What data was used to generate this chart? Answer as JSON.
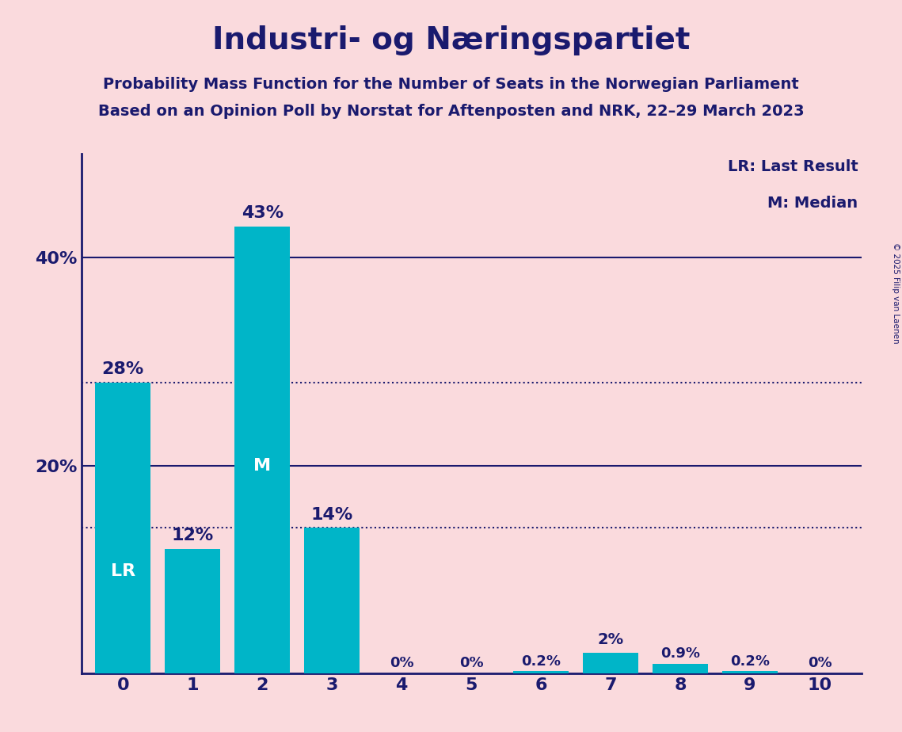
{
  "title": "Industri- og Næringspartiet",
  "subtitle1": "Probability Mass Function for the Number of Seats in the Norwegian Parliament",
  "subtitle2": "Based on an Opinion Poll by Norstat for Aftenposten and NRK, 22–29 March 2023",
  "copyright": "© 2025 Filip van Laenen",
  "categories": [
    0,
    1,
    2,
    3,
    4,
    5,
    6,
    7,
    8,
    9,
    10
  ],
  "values": [
    28,
    12,
    43,
    14,
    0,
    0,
    0.2,
    2,
    0.9,
    0.2,
    0
  ],
  "bar_color": "#00B5C8",
  "background_color": "#FADADD",
  "title_color": "#1A1A6E",
  "axis_color": "#1A1A6E",
  "label_color": "#1A1A6E",
  "bar_text_color_inside": "#FFFFFF",
  "dotted_line_values": [
    28,
    14
  ],
  "solid_line_values": [
    40,
    20
  ],
  "lr_bar_index": 0,
  "median_bar_index": 2,
  "legend_lr": "LR: Last Result",
  "legend_m": "M: Median",
  "ylim": [
    0,
    50
  ],
  "yticks": [
    20,
    40
  ],
  "ytick_labels": [
    "20%",
    "40%"
  ],
  "figsize": [
    11.39,
    9.24
  ],
  "dpi": 100
}
